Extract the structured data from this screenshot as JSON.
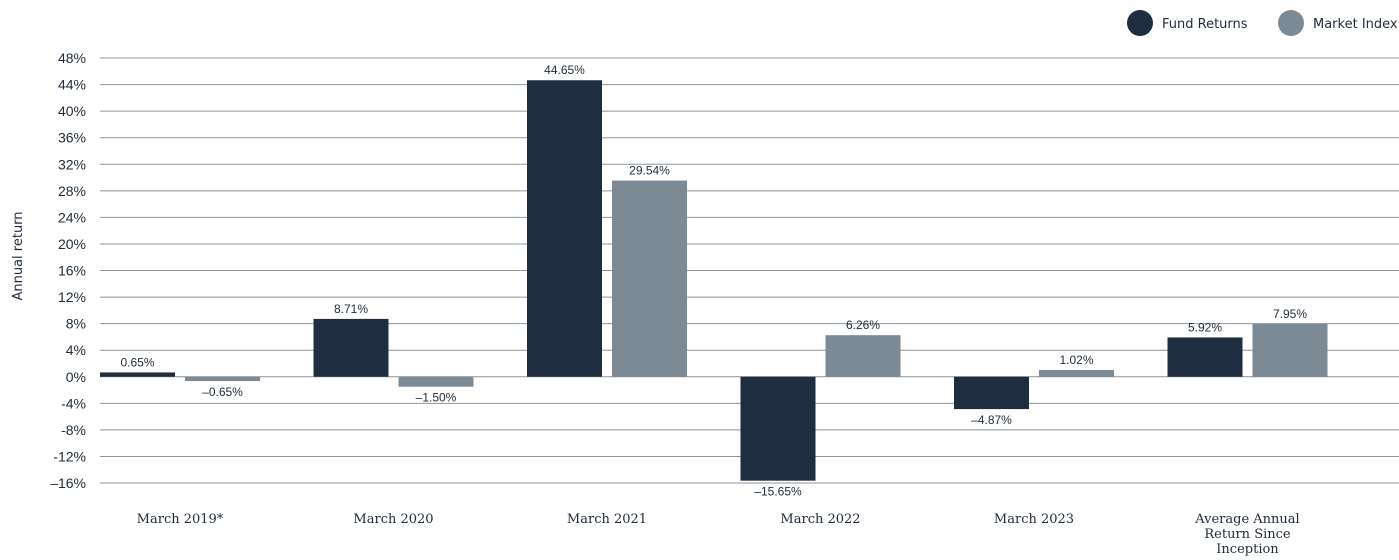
{
  "chart_data": {
    "type": "bar",
    "ylabel": "Annual return",
    "ylim": [
      -16,
      48
    ],
    "y_ticks": [
      48,
      44,
      40,
      36,
      32,
      28,
      24,
      20,
      16,
      12,
      8,
      4,
      0,
      -4,
      -8,
      -12,
      -16
    ],
    "y_tick_labels": [
      "48%",
      "44%",
      "40%",
      "36%",
      "32%",
      "28%",
      "24%",
      "20%",
      "16%",
      "12%",
      "8%",
      "4%",
      "0%",
      "-4%",
      "-8%",
      "-12%",
      "–16%"
    ],
    "grid": true,
    "legend_position": "top-right",
    "categories": [
      [
        "March 2019*"
      ],
      [
        "March 2020"
      ],
      [
        "March 2021"
      ],
      [
        "March 2022"
      ],
      [
        "March 2023"
      ],
      [
        "Average Annual",
        "Return Since",
        "Inception"
      ]
    ],
    "series": [
      {
        "name": "Fund Returns",
        "color": "#1f2d40",
        "values": [
          0.65,
          8.71,
          44.65,
          -15.65,
          -4.87,
          5.92
        ],
        "labels": [
          "0.65%",
          "8.71%",
          "44.65%",
          "–15.65%",
          "–4.87%",
          "5.92%"
        ]
      },
      {
        "name": "Market Index",
        "color": "#7c8a96",
        "values": [
          -0.65,
          -1.5,
          29.54,
          6.26,
          1.02,
          7.95
        ],
        "labels": [
          "–0.65%",
          "–1.50%",
          "29.54%",
          "6.26%",
          "1.02%",
          "7.95%"
        ]
      }
    ]
  }
}
